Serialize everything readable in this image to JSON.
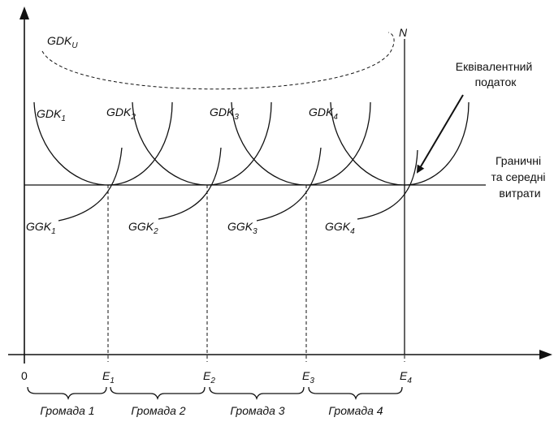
{
  "curves": {
    "gdk_u": {
      "main": "GDK",
      "sub": "U"
    },
    "gdk": [
      {
        "main": "GDK",
        "sub": "1"
      },
      {
        "main": "GDK",
        "sub": "2"
      },
      {
        "main": "GDK",
        "sub": "3"
      },
      {
        "main": "GDK",
        "sub": "4"
      }
    ],
    "ggk": [
      {
        "main": "GGK",
        "sub": "1"
      },
      {
        "main": "GGK",
        "sub": "2"
      },
      {
        "main": "GGK",
        "sub": "3"
      },
      {
        "main": "GGK",
        "sub": "4"
      }
    ],
    "n_label": "N"
  },
  "annotations": {
    "equivalent_tax": [
      "Еквівалентний",
      "податок"
    ],
    "marginal_cost": [
      "Граничні",
      "та середні",
      "витрати"
    ]
  },
  "x_axis": {
    "origin": "0",
    "ticks": [
      {
        "main": "E",
        "sub": "1"
      },
      {
        "main": "E",
        "sub": "2"
      },
      {
        "main": "E",
        "sub": "3"
      },
      {
        "main": "E",
        "sub": "4"
      }
    ]
  },
  "communities": [
    "Громада 1",
    "Громада 2",
    "Громада 3",
    "Громада 4"
  ]
}
